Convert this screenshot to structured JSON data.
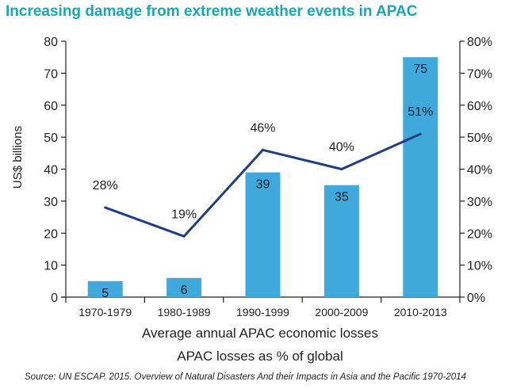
{
  "title": "Increasing damage from extreme weather events in APAC",
  "legend": {
    "bars_label": "Average annual APAC economic losses",
    "line_label": "APAC losses as % of global"
  },
  "source": "Source: UN ESCAP. 2015. Overview of Natural Disasters And their Impacts in Asia and the Pacific 1970-2014",
  "colors": {
    "title": "#1ba6b8",
    "bar": "#3fa9dc",
    "line": "#1f3e84",
    "axis": "#231f20"
  },
  "chart_data": {
    "type": "bar",
    "title": "Increasing damage from extreme weather events in APAC",
    "categories": [
      "1970-1979",
      "1980-1989",
      "1990-1999",
      "2000-2009",
      "2010-2013"
    ],
    "ylabel": "US$ billions",
    "ylim": [
      0,
      80
    ],
    "yticks": [
      0,
      10,
      20,
      30,
      40,
      50,
      60,
      70,
      80
    ],
    "y2lim": [
      0,
      80
    ],
    "y2ticks": [
      "0%",
      "10%",
      "20%",
      "30%",
      "40%",
      "50%",
      "60%",
      "70%",
      "80%"
    ],
    "series": [
      {
        "name": "Average annual APAC economic losses",
        "type": "bar",
        "axis": "left",
        "values": [
          5,
          6,
          39,
          35,
          75
        ],
        "labels": [
          "5",
          "6",
          "39",
          "35",
          "75"
        ]
      },
      {
        "name": "APAC losses as % of global",
        "type": "line",
        "axis": "right",
        "values": [
          28,
          19,
          46,
          40,
          51
        ],
        "labels": [
          "28%",
          "19%",
          "46%",
          "40%",
          "51%"
        ]
      }
    ],
    "grid": false,
    "legend_position": "bottom"
  }
}
